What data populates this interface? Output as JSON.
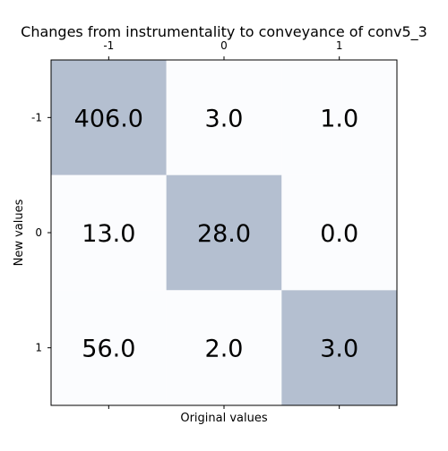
{
  "chart_data": {
    "type": "heatmap",
    "title": "Changes from instrumentality to conveyance of conv5_3",
    "xlabel": "Original values",
    "ylabel": "New values",
    "x_categories": [
      "-1",
      "0",
      "1"
    ],
    "y_categories": [
      "-1",
      "0",
      "1"
    ],
    "values": [
      [
        406.0,
        3.0,
        1.0
      ],
      [
        13.0,
        28.0,
        0.0
      ],
      [
        56.0,
        2.0,
        3.0
      ]
    ],
    "value_labels": [
      [
        "406.0",
        "3.0",
        "1.0"
      ],
      [
        "13.0",
        "28.0",
        "0.0"
      ],
      [
        "56.0",
        "2.0",
        "3.0"
      ]
    ],
    "x_tick_position": "top",
    "highlight": "diagonal",
    "colors": {
      "highlight_cell": "#b4bfd0",
      "normal_cell": "#fbfcfe",
      "frame": "#000000"
    },
    "grid": false,
    "legend": "none"
  }
}
